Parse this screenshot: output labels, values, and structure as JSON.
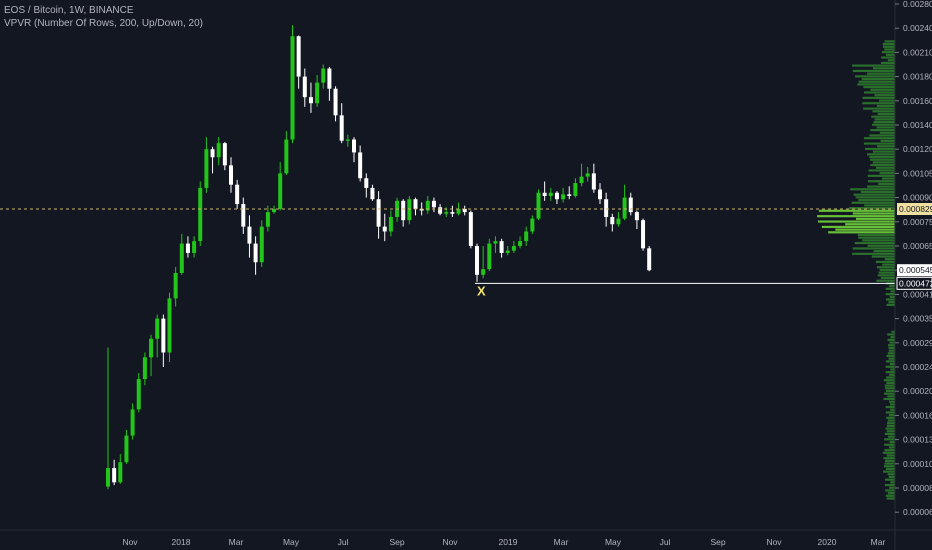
{
  "header": {
    "symbol_line": "EOS / Bitcoin, 1W, BINANCE",
    "indicator_line": "VPVR (Number Of Rows, 200, Up/Down, 20)"
  },
  "colors": {
    "background": "#131722",
    "up": "#22c51a",
    "down": "#ffffff",
    "volume_profile": "#2d7a2d",
    "volume_poc": "#6fd23a",
    "current_price_line": "#c9b66b",
    "support_line": "#ffffff",
    "marker": "#f2e36b"
  },
  "marker": {
    "label": "X"
  },
  "chart_data": {
    "type": "candlestick",
    "title": "EOS / Bitcoin, 1W, BINANCE",
    "y_tick_labels": [
      "0.0028000",
      "0.0024000",
      "0.0021000",
      "0.0018000",
      "0.0016000",
      "0.0014000",
      "0.0012000",
      "0.0010500",
      "0.0009000",
      "0.0007500",
      "0.0006500",
      "0.0005457",
      "0.0004100",
      "0.0003500",
      "0.0002900",
      "0.0002400",
      "0.0002000",
      "0.0001600",
      "0.0001300",
      "0.0001000",
      "0.0000830",
      "0.0000630"
    ],
    "x_tick_labels": [
      "Nov",
      "2018",
      "Mar",
      "May",
      "Jul",
      "Sep",
      "Nov",
      "2019",
      "Mar",
      "May",
      "Jul",
      "Sep",
      "Nov",
      "2020",
      "Mar"
    ],
    "price_tags": [
      {
        "label": "0.0008293",
        "style": "current"
      },
      {
        "label": "0.0005457",
        "style": "last"
      },
      {
        "label": "0.0004721",
        "style": "support"
      }
    ],
    "candles": [
      [
        8.4e-05,
        9.7e-05,
        8.2e-05,
        0.00028
      ],
      [
        9.7e-05,
        8.7e-05,
        8.5e-05,
        0.000105
      ],
      [
        8.7e-05,
        0.000102,
        8.6e-05,
        0.000112
      ],
      [
        0.000102,
        0.000135,
        0.0001,
        0.000142
      ],
      [
        0.000135,
        0.00017,
        0.00013,
        0.00018
      ],
      [
        0.00017,
        0.00022,
        0.000165,
        0.00023
      ],
      [
        0.00022,
        0.00026,
        0.00021,
        0.00027
      ],
      [
        0.00026,
        0.0003,
        0.000225,
        0.00031
      ],
      [
        0.0003,
        0.00035,
        0.00026,
        0.00036
      ],
      [
        0.00035,
        0.00027,
        0.00024,
        0.00036
      ],
      [
        0.00027,
        0.0004,
        0.00025,
        0.00042
      ],
      [
        0.0004,
        0.00053,
        0.00038,
        0.00056
      ],
      [
        0.00053,
        0.00066,
        0.00052,
        0.0007
      ],
      [
        0.00066,
        0.00062,
        0.0006,
        0.00069
      ],
      [
        0.00062,
        0.00067,
        0.0006,
        0.00069
      ],
      [
        0.00067,
        0.00096,
        0.00065,
        0.001
      ],
      [
        0.00096,
        0.0012,
        0.00093,
        0.0013
      ],
      [
        0.0012,
        0.00115,
        0.00105,
        0.00122
      ],
      [
        0.00115,
        0.00125,
        0.0011,
        0.0013
      ],
      [
        0.00125,
        0.0011,
        0.00107,
        0.00126
      ],
      [
        0.0011,
        0.00098,
        0.00093,
        0.00115
      ],
      [
        0.00098,
        0.00086,
        0.00083,
        0.00101
      ],
      [
        0.00086,
        0.00073,
        0.0007,
        0.0009
      ],
      [
        0.00073,
        0.00066,
        0.0006,
        0.00079
      ],
      [
        0.00066,
        0.00058,
        0.00052,
        0.00069
      ],
      [
        0.00058,
        0.00073,
        0.00056,
        0.00076
      ],
      [
        0.00073,
        0.00081,
        0.00071,
        0.00085
      ],
      [
        0.00081,
        0.00083,
        0.0008,
        0.00085
      ],
      [
        0.00083,
        0.00105,
        0.00082,
        0.00112
      ],
      [
        0.00105,
        0.00128,
        0.00104,
        0.00135
      ],
      [
        0.00128,
        0.0023,
        0.00125,
        0.00245
      ],
      [
        0.0023,
        0.0018,
        0.0017,
        0.00231
      ],
      [
        0.0018,
        0.00163,
        0.00155,
        0.0019
      ],
      [
        0.00163,
        0.00158,
        0.0015,
        0.00175
      ],
      [
        0.00158,
        0.00175,
        0.00155,
        0.00182
      ],
      [
        0.00175,
        0.0019,
        0.0017,
        0.00195
      ],
      [
        0.0019,
        0.0017,
        0.0016,
        0.00192
      ],
      [
        0.0017,
        0.00148,
        0.00143,
        0.00172
      ],
      [
        0.00148,
        0.00127,
        0.00125,
        0.00158
      ],
      [
        0.00127,
        0.00128,
        0.00122,
        0.00132
      ],
      [
        0.00128,
        0.00118,
        0.00112,
        0.0013
      ],
      [
        0.00118,
        0.00102,
        0.001,
        0.00123
      ],
      [
        0.00102,
        0.00096,
        0.0009,
        0.00105
      ],
      [
        0.00096,
        0.00089,
        0.00088,
        0.00098
      ],
      [
        0.00089,
        0.00073,
        0.00068,
        0.00094
      ],
      [
        0.00073,
        0.00071,
        0.00067,
        0.0008
      ],
      [
        0.00071,
        0.00078,
        0.00069,
        0.00082
      ],
      [
        0.00078,
        0.00088,
        0.00075,
        0.0009
      ],
      [
        0.00088,
        0.00076,
        0.00073,
        0.00089
      ],
      [
        0.00076,
        0.00089,
        0.00074,
        0.00091
      ],
      [
        0.00089,
        0.00083,
        0.00079,
        0.0009
      ],
      [
        0.00083,
        0.00082,
        0.00079,
        0.00087
      ],
      [
        0.00082,
        0.00088,
        0.0008,
        0.00091
      ],
      [
        0.00088,
        0.00084,
        0.00081,
        0.0009
      ],
      [
        0.00084,
        0.0008,
        0.00079,
        0.00086
      ],
      [
        0.0008,
        0.00081,
        0.00078,
        0.00084
      ],
      [
        0.00081,
        0.0008,
        0.00078,
        0.00085
      ],
      [
        0.0008,
        0.00083,
        0.00079,
        0.00087
      ],
      [
        0.00083,
        0.00081,
        0.00079,
        0.00085
      ],
      [
        0.00081,
        0.00065,
        0.00064,
        0.00082
      ],
      [
        0.00065,
        0.00052,
        0.00048,
        0.00066
      ],
      [
        0.00052,
        0.00055,
        0.0005,
        0.00065
      ],
      [
        0.00055,
        0.00066,
        0.00054,
        0.00068
      ],
      [
        0.00066,
        0.00067,
        0.00062,
        0.00069
      ],
      [
        0.00067,
        0.00062,
        0.0006,
        0.00068
      ],
      [
        0.00062,
        0.00063,
        0.00061,
        0.00065
      ],
      [
        0.00063,
        0.00065,
        0.00062,
        0.00067
      ],
      [
        0.00065,
        0.00067,
        0.00064,
        0.00069
      ],
      [
        0.00067,
        0.00071,
        0.00065,
        0.00073
      ],
      [
        0.00071,
        0.00077,
        0.0007,
        0.00079
      ],
      [
        0.00077,
        0.00093,
        0.00076,
        0.00095
      ],
      [
        0.00093,
        0.00091,
        0.00088,
        0.001
      ],
      [
        0.00091,
        0.00093,
        0.00088,
        0.00096
      ],
      [
        0.00093,
        0.00089,
        0.00086,
        0.00094
      ],
      [
        0.00089,
        0.00092,
        0.00087,
        0.00096
      ],
      [
        0.00092,
        0.00091,
        0.00089,
        0.00097
      ],
      [
        0.00091,
        0.00099,
        0.0009,
        0.00102
      ],
      [
        0.00099,
        0.00103,
        0.00097,
        0.00111
      ],
      [
        0.00103,
        0.00105,
        0.001,
        0.00109
      ],
      [
        0.00105,
        0.00095,
        0.00093,
        0.00111
      ],
      [
        0.00095,
        0.00089,
        0.00086,
        0.00099
      ],
      [
        0.00089,
        0.00078,
        0.00073,
        0.00093
      ],
      [
        0.00078,
        0.00074,
        0.00071,
        0.0008
      ],
      [
        0.00074,
        0.00077,
        0.00073,
        0.00081
      ],
      [
        0.00077,
        0.0009,
        0.00076,
        0.00098
      ],
      [
        0.0009,
        0.00081,
        0.00079,
        0.00093
      ],
      [
        0.00081,
        0.00076,
        0.00072,
        0.00082
      ],
      [
        0.00076,
        0.00064,
        0.00063,
        0.00077
      ],
      [
        0.00064,
        0.0005457,
        0.00054,
        0.00065
      ]
    ],
    "volume_profile": [
      {
        "price_index": 2,
        "length": 0.18
      },
      {
        "price_index": 3,
        "length": 0.55
      },
      {
        "price_index": 4,
        "length": 0.42
      },
      {
        "price_index": 5,
        "length": 0.33
      },
      {
        "price_index": 6,
        "length": 0.4
      },
      {
        "price_index": 7,
        "length": 0.35
      },
      {
        "price_index": 8,
        "length": 0.6
      },
      {
        "price_index": 9,
        "length": 1.0
      },
      {
        "price_index": 10,
        "length": 0.55
      },
      {
        "price_index": 11,
        "length": 0.25
      },
      {
        "price_index": 12,
        "length": 0.12
      },
      {
        "price_index": 14,
        "length": 0.1
      },
      {
        "price_index": 15,
        "length": 0.12
      },
      {
        "price_index": 16,
        "length": 0.15
      },
      {
        "price_index": 17,
        "length": 0.12
      },
      {
        "price_index": 18,
        "length": 0.14
      },
      {
        "price_index": 19,
        "length": 0.16
      },
      {
        "price_index": 20,
        "length": 0.13
      }
    ]
  }
}
